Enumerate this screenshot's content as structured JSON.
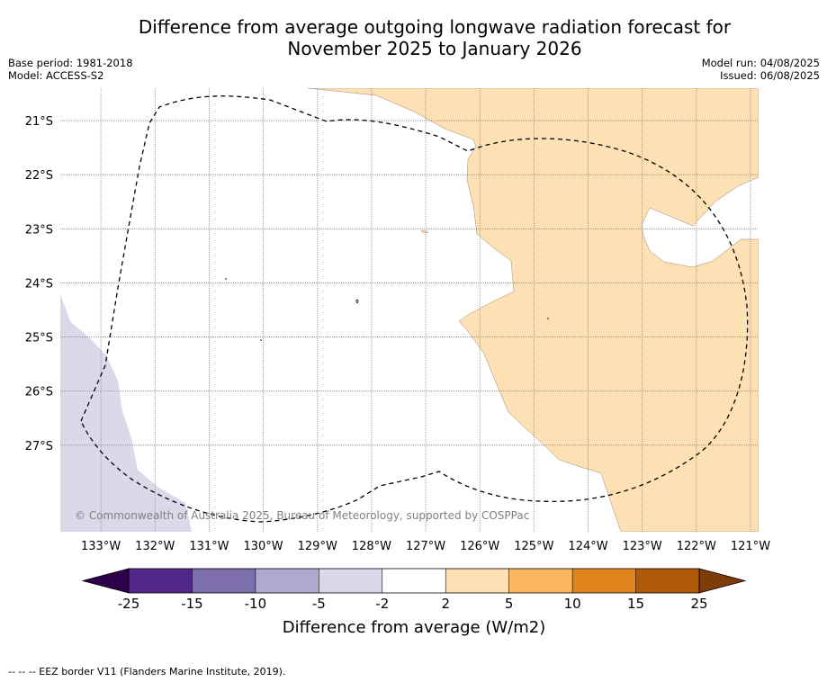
{
  "title": {
    "line1": "Difference from average outgoing longwave radiation forecast for",
    "line2": "November 2025 to January 2026"
  },
  "meta_left": {
    "base_period": "Base period: 1981-2018",
    "model": "Model: ACCESS-S2"
  },
  "meta_right": {
    "model_run": "Model run: 04/08/2025",
    "issued": "Issued: 06/08/2025"
  },
  "map": {
    "lon_range": [
      -133.75,
      -120.85
    ],
    "lat_range": [
      -28.6,
      -20.4
    ],
    "lon_ticks": [
      -133,
      -132,
      -131,
      -130,
      -129,
      -128,
      -127,
      -126,
      -125,
      -124,
      -123,
      -122,
      -121
    ],
    "lon_labels": [
      "133°W",
      "132°W",
      "131°W",
      "130°W",
      "129°W",
      "128°W",
      "127°W",
      "126°W",
      "125°W",
      "124°W",
      "123°W",
      "122°W",
      "121°W"
    ],
    "lat_ticks": [
      -21,
      -22,
      -23,
      -24,
      -25,
      -26,
      -27
    ],
    "lat_labels": [
      "21°S",
      "22°S",
      "23°S",
      "24°S",
      "25°S",
      "26°S",
      "27°S"
    ],
    "grid": true,
    "copyright": "© Commonwealth of Australia 2025, Bureau of Meteorology, supported by COSPPac"
  },
  "colorbar": {
    "tick_labels": [
      "-25",
      "-15",
      "-10",
      "-5",
      "-2",
      "2",
      "5",
      "10",
      "15",
      "25"
    ],
    "colors": [
      "#512888",
      "#7c6fab",
      "#aea9d0",
      "#d9d9ea",
      "#ffffff",
      "#fde0b3",
      "#fbb65f",
      "#e2821a",
      "#b05a08"
    ],
    "under_color": "#2d004b",
    "over_color": "#7f3b08",
    "label": "Difference from average (W/m2)"
  },
  "colors": {
    "positive_2_5": "#fde0b3",
    "negative_2_5": "#d9d9ea",
    "grid": "#888888",
    "eez": "#000000"
  },
  "footer": "--  --  -- EEZ border V11 (Flanders Marine Institute, 2019)."
}
